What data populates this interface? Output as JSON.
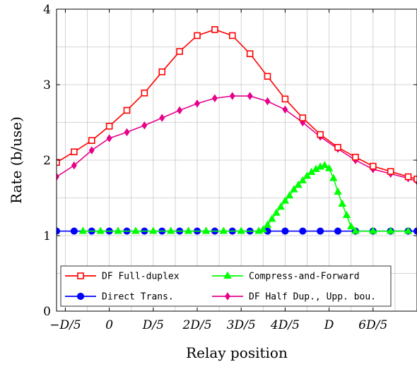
{
  "chart_data": {
    "type": "line",
    "xlabel": "Relay position",
    "ylabel": "Rate (b/use)",
    "xlim": [
      -1.2,
      7.0
    ],
    "ylim": [
      0,
      4
    ],
    "grid": true,
    "legend_position": "bottom-center",
    "x_ticks": [
      {
        "value": -1,
        "label": "−D/5"
      },
      {
        "value": 0,
        "label": "0"
      },
      {
        "value": 1,
        "label": "D/5"
      },
      {
        "value": 2,
        "label": "2D/5"
      },
      {
        "value": 3,
        "label": "3D/5"
      },
      {
        "value": 4,
        "label": "4D/5"
      },
      {
        "value": 5,
        "label": "D"
      },
      {
        "value": 6,
        "label": "6D/5"
      }
    ],
    "y_ticks": [
      {
        "value": 0,
        "label": "0"
      },
      {
        "value": 1,
        "label": "1"
      },
      {
        "value": 2,
        "label": "2"
      },
      {
        "value": 3,
        "label": "3"
      },
      {
        "value": 4,
        "label": "4"
      }
    ],
    "series": [
      {
        "name": "DF Full-duplex",
        "color": "#ff0000",
        "marker": "square",
        "x": [
          -1.2,
          -0.8,
          -0.4,
          0,
          0.4,
          0.8,
          1.2,
          1.6,
          2.0,
          2.4,
          2.8,
          3.2,
          3.6,
          4.0,
          4.4,
          4.8,
          5.2,
          5.6,
          6.0,
          6.4,
          6.8,
          7.0
        ],
        "y": [
          1.97,
          2.11,
          2.26,
          2.45,
          2.66,
          2.89,
          3.17,
          3.44,
          3.65,
          3.73,
          3.65,
          3.41,
          3.11,
          2.81,
          2.56,
          2.34,
          2.17,
          2.04,
          1.92,
          1.85,
          1.78,
          1.75
        ]
      },
      {
        "name": "Direct Trans.",
        "color": "#0000ff",
        "marker": "circle",
        "x": [
          -1.2,
          -0.8,
          -0.4,
          0,
          0.4,
          0.8,
          1.2,
          1.6,
          2.0,
          2.4,
          2.8,
          3.2,
          3.6,
          4.0,
          4.4,
          4.8,
          5.2,
          5.6,
          6.0,
          6.4,
          6.8,
          7.0
        ],
        "y": [
          1.06,
          1.06,
          1.06,
          1.06,
          1.06,
          1.06,
          1.06,
          1.06,
          1.06,
          1.06,
          1.06,
          1.06,
          1.06,
          1.06,
          1.06,
          1.06,
          1.06,
          1.06,
          1.06,
          1.06,
          1.06,
          1.06
        ]
      },
      {
        "name": "Compress-and-Forward",
        "color": "#00ff00",
        "marker": "triangle",
        "x": [
          -0.6,
          -0.2,
          0.2,
          0.6,
          1.0,
          1.4,
          1.8,
          2.2,
          2.6,
          3.0,
          3.4,
          3.5,
          3.6,
          3.7,
          3.8,
          3.9,
          4.0,
          4.1,
          4.2,
          4.3,
          4.4,
          4.5,
          4.6,
          4.7,
          4.8,
          4.9,
          5.0,
          5.1,
          5.2,
          5.3,
          5.4,
          5.5,
          5.6,
          6.0,
          6.4,
          6.8
        ],
        "y": [
          1.06,
          1.06,
          1.06,
          1.06,
          1.06,
          1.06,
          1.06,
          1.06,
          1.06,
          1.06,
          1.06,
          1.08,
          1.14,
          1.22,
          1.3,
          1.38,
          1.46,
          1.53,
          1.61,
          1.67,
          1.73,
          1.79,
          1.84,
          1.88,
          1.91,
          1.93,
          1.89,
          1.76,
          1.58,
          1.42,
          1.27,
          1.12,
          1.06,
          1.06,
          1.06,
          1.06
        ]
      },
      {
        "name": "DF Half Dup., Upp. bou.",
        "color": "#e6008a",
        "marker": "diamond",
        "x": [
          -1.2,
          -0.8,
          -0.4,
          0,
          0.4,
          0.8,
          1.2,
          1.6,
          2.0,
          2.4,
          2.8,
          3.2,
          3.6,
          4.0,
          4.4,
          4.8,
          5.2,
          5.6,
          6.0,
          6.4,
          6.8,
          7.0
        ],
        "y": [
          1.78,
          1.93,
          2.13,
          2.29,
          2.37,
          2.46,
          2.56,
          2.66,
          2.75,
          2.82,
          2.85,
          2.85,
          2.78,
          2.67,
          2.5,
          2.31,
          2.15,
          2.0,
          1.88,
          1.82,
          1.76,
          1.72
        ]
      }
    ]
  }
}
